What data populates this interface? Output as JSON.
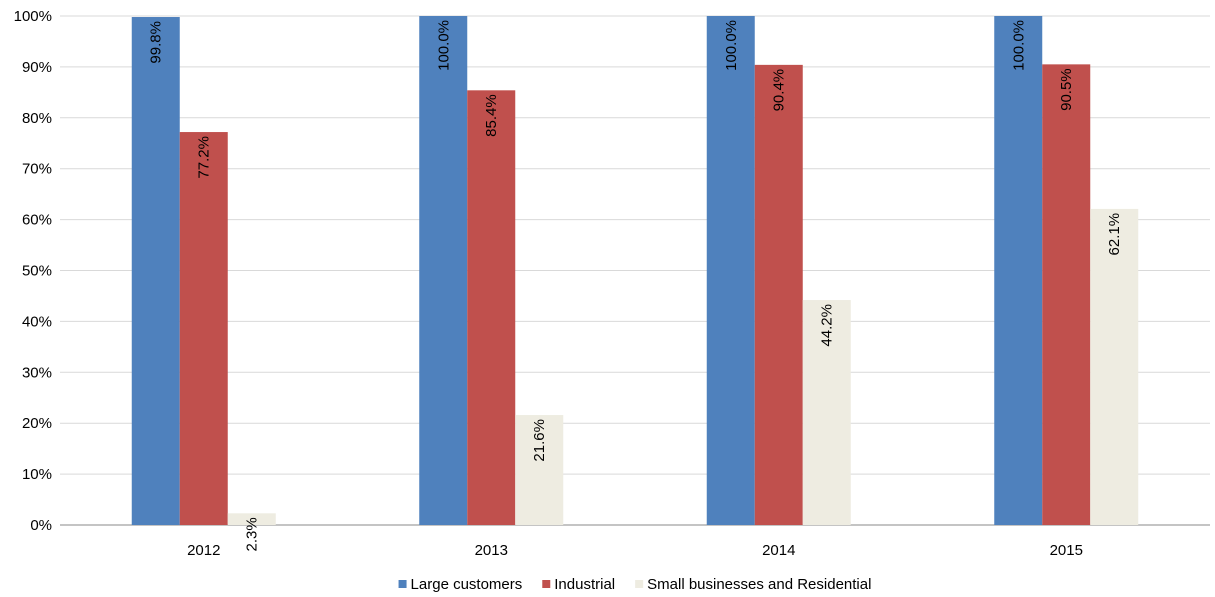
{
  "chart_data": {
    "type": "bar",
    "categories": [
      "2012",
      "2013",
      "2014",
      "2015"
    ],
    "series": [
      {
        "name": "Large customers",
        "values": [
          99.8,
          100.0,
          100.0,
          100.0
        ],
        "labels": [
          "99.8%",
          "100.0%",
          "100.0%",
          "100.0%"
        ],
        "color": "#4F81BD"
      },
      {
        "name": "Industrial",
        "values": [
          77.2,
          85.4,
          90.4,
          90.5
        ],
        "labels": [
          "77.2%",
          "85.4%",
          "90.4%",
          "90.5%"
        ],
        "color": "#C0504D"
      },
      {
        "name": "Small businesses and Residential",
        "values": [
          2.3,
          21.6,
          44.2,
          62.1
        ],
        "labels": [
          "2.3%",
          "21.6%",
          "44.2%",
          "62.1%"
        ],
        "color": "#EEECE1"
      }
    ],
    "y_ticks": [
      "0%",
      "10%",
      "20%",
      "30%",
      "40%",
      "50%",
      "60%",
      "70%",
      "80%",
      "90%",
      "100%"
    ],
    "ylim": [
      0,
      100
    ],
    "grid": true,
    "legend_position": "bottom",
    "title": "",
    "xlabel": "",
    "ylabel": ""
  }
}
